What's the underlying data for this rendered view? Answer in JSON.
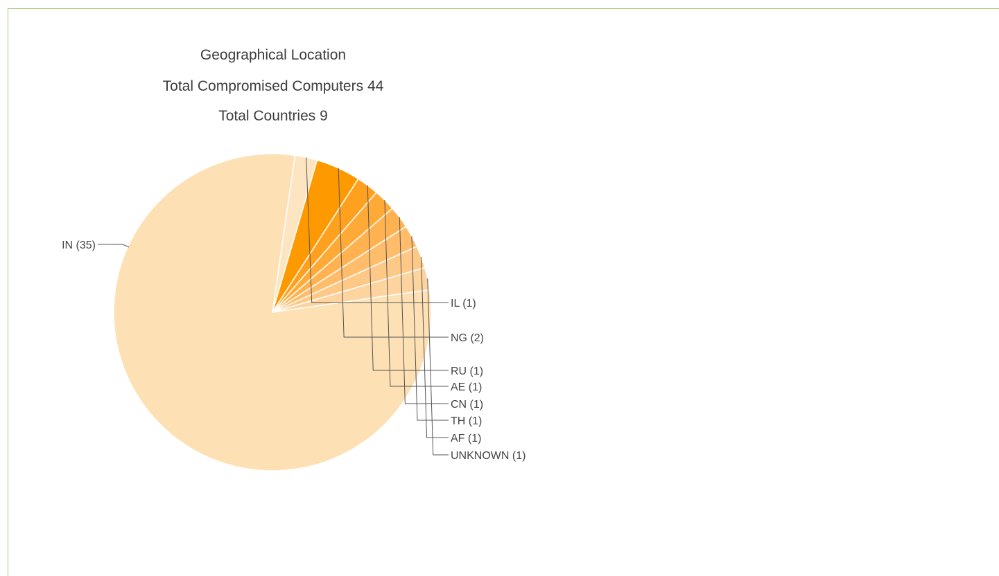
{
  "chart_data": {
    "type": "pie",
    "title_lines": [
      "Geographical Location",
      "Total Compromised Computers 44",
      "Total Countries 9"
    ],
    "slices": [
      {
        "label": "IN (35)",
        "value": 35,
        "color": "#fde0b3"
      },
      {
        "label": "IL (1)",
        "value": 1,
        "color": "#fde5c1"
      },
      {
        "label": "NG (2)",
        "value": 2,
        "color": "#ff9900"
      },
      {
        "label": "RU (1)",
        "value": 1,
        "color": "#ffa11f"
      },
      {
        "label": "AE (1)",
        "value": 1,
        "color": "#ffaa36"
      },
      {
        "label": "CN (1)",
        "value": 1,
        "color": "#ffb24f"
      },
      {
        "label": "TH (1)",
        "value": 1,
        "color": "#ffbd6b"
      },
      {
        "label": "AF (1)",
        "value": 1,
        "color": "#fec987"
      },
      {
        "label": "UNKNOWN (1)",
        "value": 1,
        "color": "#fdd39e"
      }
    ],
    "colors": {
      "border": "#9acd68",
      "text": "#444444",
      "leader": "#555555",
      "separator": "#ffffff"
    }
  }
}
